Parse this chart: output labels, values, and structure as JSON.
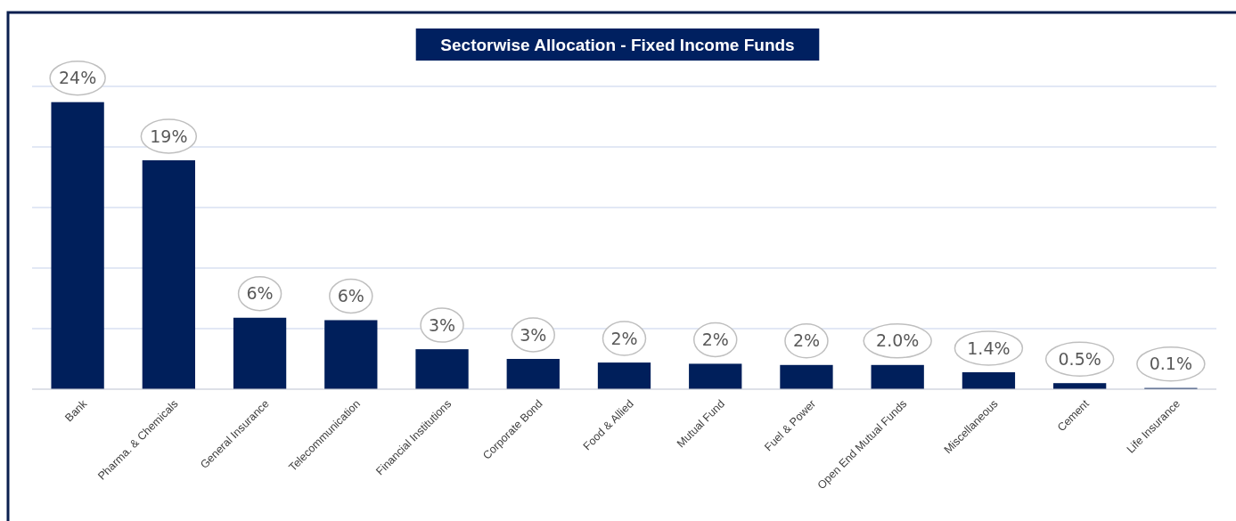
{
  "chart_data": {
    "type": "bar",
    "title": "Sectorwise Allocation - Fixed Income Funds",
    "categories": [
      "Bank",
      "Pharma. & Chemicals",
      "General Insurance",
      "Telecommunication",
      "Financial Institutions",
      "Corporate Bond",
      "Food & Allied",
      "Mutual Fund",
      "Fuel & Power",
      "Open End Mutual Funds",
      "Miscellaneous",
      "Cement",
      "Life Insurance"
    ],
    "values": [
      23.7,
      18.9,
      5.9,
      5.7,
      3.3,
      2.5,
      2.2,
      2.1,
      2.0,
      2.0,
      1.4,
      0.5,
      0.1
    ],
    "value_labels": [
      "24%",
      "19%",
      "6%",
      "6%",
      "3%",
      "3%",
      "2%",
      "2%",
      "2%",
      "2.0%",
      "1.4%",
      "0.5%",
      "0.1%"
    ],
    "color": "#001f5b",
    "ylim": [
      0,
      25
    ],
    "yticks": [
      {
        "value": 0,
        "label": null
      },
      {
        "value": 5,
        "label": null
      },
      {
        "value": 10,
        "label": null
      },
      {
        "value": 15,
        "label": null
      },
      {
        "value": 20,
        "label": null
      },
      {
        "value": 25,
        "label": null
      }
    ],
    "grid": "y",
    "tick_labels": "x"
  }
}
